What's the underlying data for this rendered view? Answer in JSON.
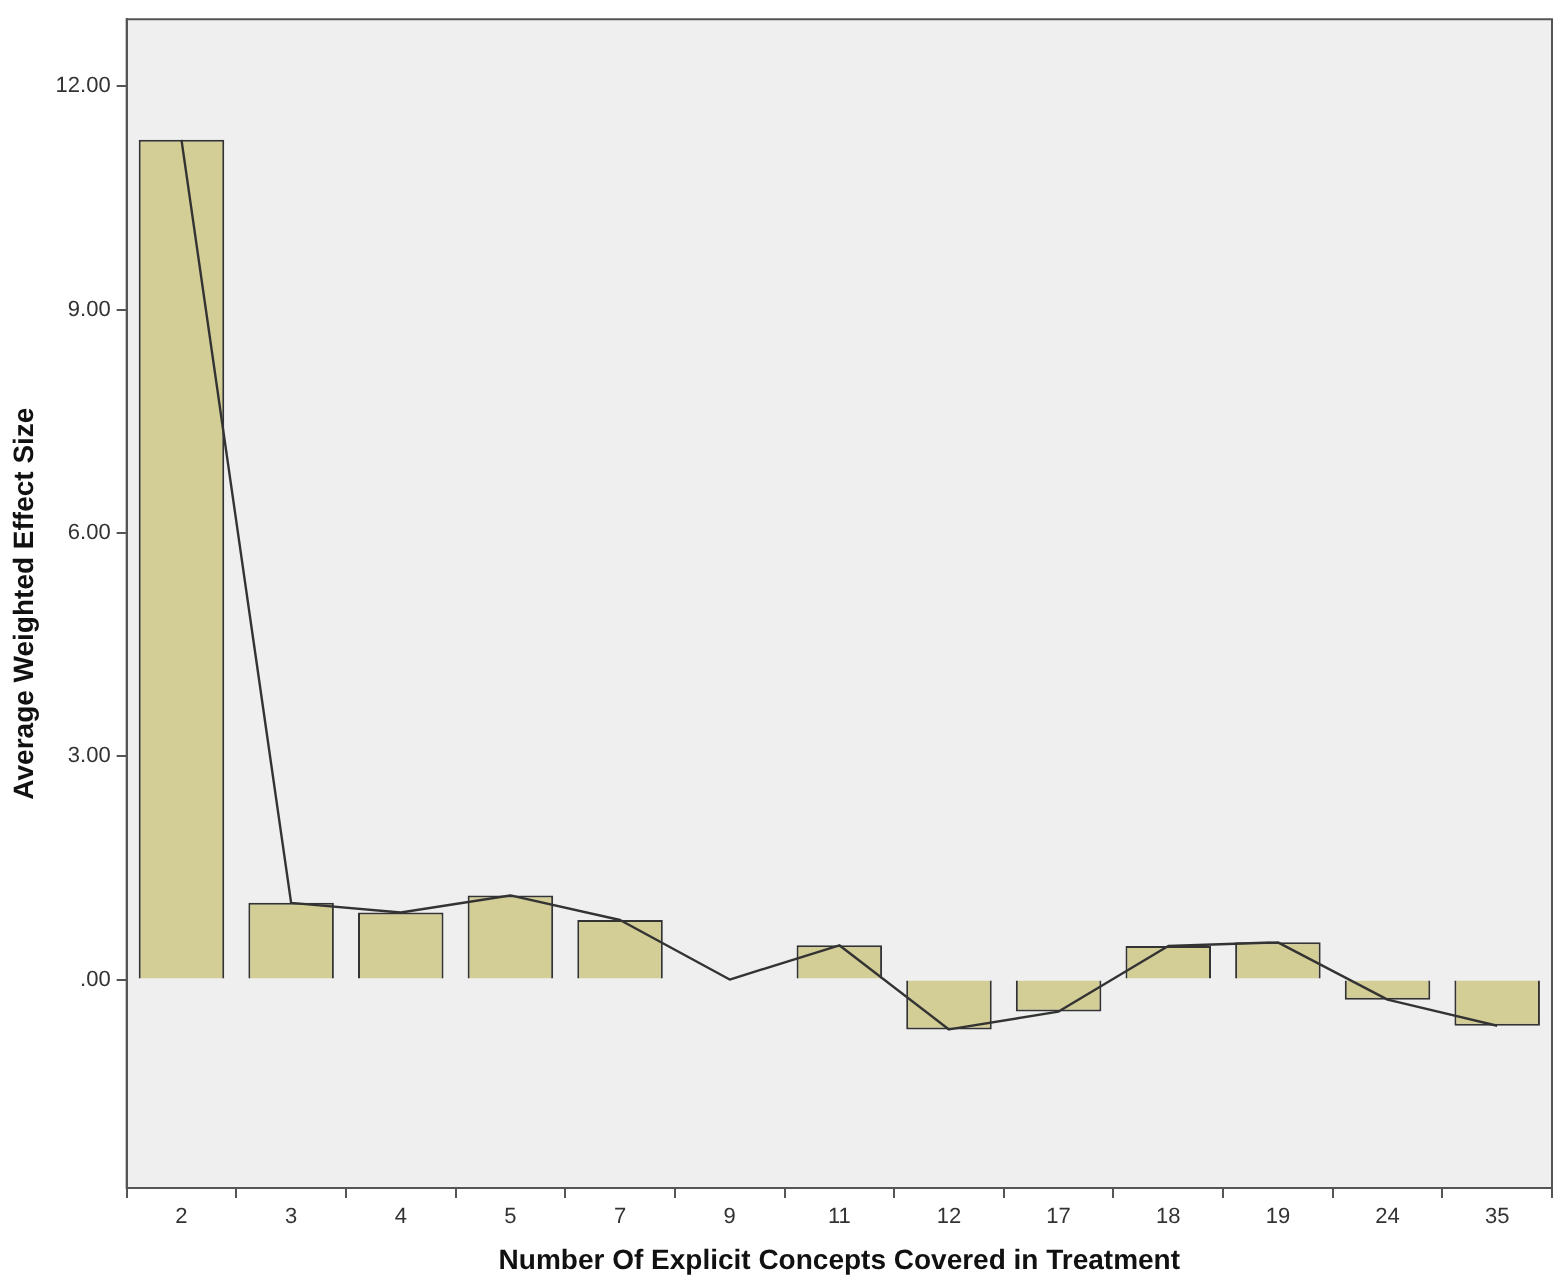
{
  "chart_data": {
    "type": "bar",
    "xlabel": "Number Of Explicit Concepts Covered in Treatment",
    "ylabel": "Average Weighted Effect Size",
    "categories": [
      "2",
      "3",
      "4",
      "5",
      "7",
      "9",
      "11",
      "12",
      "17",
      "18",
      "19",
      "24",
      "35"
    ],
    "series": [
      {
        "color": "#d3cd96",
        "values": [
          11.28,
          1.03,
          0.9,
          1.13,
          0.8,
          0,
          0.46,
          -0.67,
          -0.43,
          0.45,
          0.5,
          -0.27,
          -0.62
        ]
      },
      {
        "type": "line",
        "color": "#333333",
        "values": [
          11.28,
          1.03,
          0.9,
          1.13,
          0.8,
          0,
          0.46,
          -0.67,
          -0.43,
          0.45,
          0.5,
          -0.27,
          -0.62
        ]
      }
    ],
    "ylim": [
      -2.8,
      12.9
    ],
    "yticks": [
      {
        "value": 0,
        "label": ".00"
      },
      {
        "value": 3,
        "label": "3.00"
      },
      {
        "value": 6,
        "label": "6.00"
      },
      {
        "value": 9,
        "label": "9.00"
      },
      {
        "value": 12,
        "label": "12.00"
      }
    ],
    "marker": "none"
  }
}
